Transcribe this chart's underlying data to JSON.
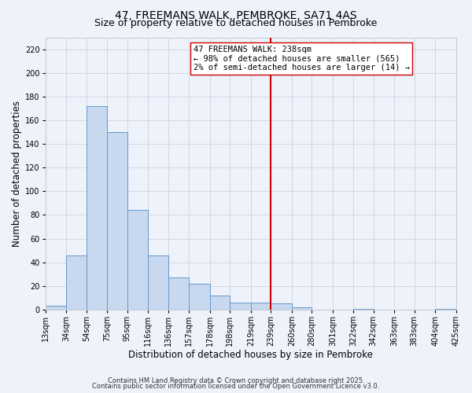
{
  "title": "47, FREEMANS WALK, PEMBROKE, SA71 4AS",
  "subtitle": "Size of property relative to detached houses in Pembroke",
  "xlabel": "Distribution of detached houses by size in Pembroke",
  "ylabel": "Number of detached properties",
  "bin_labels": [
    "13sqm",
    "34sqm",
    "54sqm",
    "75sqm",
    "95sqm",
    "116sqm",
    "136sqm",
    "157sqm",
    "178sqm",
    "198sqm",
    "219sqm",
    "239sqm",
    "260sqm",
    "280sqm",
    "301sqm",
    "322sqm",
    "342sqm",
    "363sqm",
    "383sqm",
    "404sqm",
    "425sqm"
  ],
  "bin_edges": [
    13,
    34,
    54,
    75,
    95,
    116,
    136,
    157,
    178,
    198,
    219,
    239,
    260,
    280,
    301,
    322,
    342,
    363,
    383,
    404,
    425
  ],
  "counts": [
    3,
    46,
    172,
    150,
    84,
    46,
    27,
    22,
    12,
    6,
    6,
    5,
    2,
    0,
    0,
    1,
    0,
    0,
    0,
    1
  ],
  "bar_color": "#c8d8ee",
  "bar_edge_color": "#6699cc",
  "vline_x": 239,
  "vline_color": "#cc0000",
  "annotation_line1": "47 FREEMANS WALK: 238sqm",
  "annotation_line2": "← 98% of detached houses are smaller (565)",
  "annotation_line3": "2% of semi-detached houses are larger (14) →",
  "ylim": [
    0,
    230
  ],
  "yticks": [
    0,
    20,
    40,
    60,
    80,
    100,
    120,
    140,
    160,
    180,
    200,
    220
  ],
  "footer1": "Contains HM Land Registry data © Crown copyright and database right 2025.",
  "footer2": "Contains public sector information licensed under the Open Government Licence v3.0.",
  "bg_color": "#eef2fa",
  "grid_color": "#c8ccd8",
  "title_fontsize": 10,
  "subtitle_fontsize": 9,
  "axis_label_fontsize": 8.5,
  "tick_fontsize": 7,
  "annotation_fontsize": 7.5,
  "footer_fontsize": 6
}
